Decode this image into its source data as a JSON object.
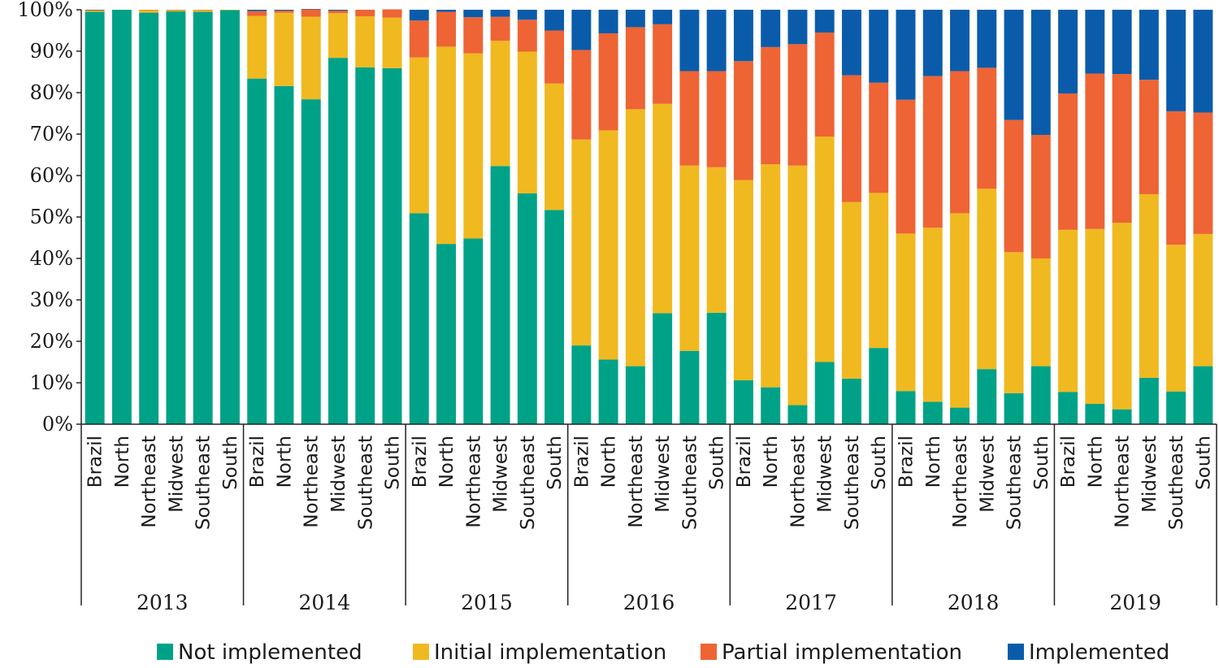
{
  "chart_data": {
    "type": "bar",
    "stacked": true,
    "normalized": true,
    "title": "",
    "xlabel": "",
    "ylabel": "",
    "ylim": [
      0,
      100
    ],
    "y_ticks": [
      "0%",
      "10%",
      "20%",
      "30%",
      "40%",
      "50%",
      "60%",
      "70%",
      "80%",
      "90%",
      "100%"
    ],
    "groups": [
      "2013",
      "2014",
      "2015",
      "2016",
      "2017",
      "2018",
      "2019"
    ],
    "regions": [
      "Brazil",
      "North",
      "Northeast",
      "Midwest",
      "Southeast",
      "South"
    ],
    "categories": [
      "2013 Brazil",
      "2013 North",
      "2013 Northeast",
      "2013 Midwest",
      "2013 Southeast",
      "2013 South",
      "2014 Brazil",
      "2014 North",
      "2014 Northeast",
      "2014 Midwest",
      "2014 Southeast",
      "2014 South",
      "2015 Brazil",
      "2015 North",
      "2015 Northeast",
      "2015 Midwest",
      "2015 Southeast",
      "2015 South",
      "2016 Brazil",
      "2016 North",
      "2016 Northeast",
      "2016 Midwest",
      "2016 Southeast",
      "2016 South",
      "2017 Brazil",
      "2017 North",
      "2017 Northeast",
      "2017 Midwest",
      "2017 Southeast",
      "2017 South",
      "2018 Brazil",
      "2018 North",
      "2018 Northeast",
      "2018 Midwest",
      "2018 Southeast",
      "2018 South",
      "2019 Brazil",
      "2019 North",
      "2019 Northeast",
      "2019 Midwest",
      "2019 Southeast",
      "2019 South"
    ],
    "series": [
      {
        "name": "Not implemented",
        "color": "#00a287",
        "values": [
          99.5,
          100,
          99.3,
          99.6,
          99.5,
          99.9,
          83.4,
          81.6,
          78.4,
          88.4,
          86.1,
          85.9,
          50.9,
          43.5,
          44.8,
          62.3,
          55.7,
          51.7,
          19.0,
          15.6,
          14.0,
          26.8,
          17.7,
          26.9,
          10.6,
          8.9,
          4.6,
          15.0,
          11.0,
          18.4,
          8.0,
          5.4,
          4.0,
          13.3,
          7.5,
          14.0,
          7.8,
          4.9,
          3.6,
          11.2,
          7.9,
          14.0
        ]
      },
      {
        "name": "Initial implementation",
        "color": "#f0b920",
        "values": [
          0.3,
          0,
          0.6,
          0.3,
          0.4,
          0.1,
          15.1,
          17.7,
          19.9,
          10.8,
          12.3,
          12.2,
          37.6,
          47.6,
          44.7,
          30.2,
          34.2,
          30.5,
          49.7,
          55.3,
          62.0,
          50.5,
          44.7,
          35.1,
          48.3,
          53.8,
          57.8,
          54.4,
          42.6,
          37.4,
          38.0,
          42.0,
          46.9,
          43.5,
          34.0,
          26.0,
          39.1,
          42.2,
          45.0,
          44.3,
          35.4,
          31.9
        ]
      },
      {
        "name": "Partial implementation",
        "color": "#ee6434",
        "values": [
          0.1,
          0,
          0.1,
          0.1,
          0.1,
          0,
          1.2,
          0.5,
          1.8,
          0.6,
          1.6,
          2.0,
          8.9,
          8.4,
          8.7,
          5.8,
          7.7,
          12.8,
          21.6,
          23.4,
          19.8,
          19.2,
          22.8,
          23.2,
          28.7,
          28.3,
          29.3,
          25.1,
          30.6,
          26.6,
          32.3,
          36.6,
          34.3,
          29.2,
          31.9,
          29.8,
          32.9,
          37.5,
          35.9,
          27.6,
          32.2,
          29.3
        ]
      },
      {
        "name": "Implemented",
        "color": "#0a5caa",
        "values": [
          0.1,
          0,
          0,
          0,
          0,
          0,
          0.3,
          0.2,
          0.1,
          0.2,
          0,
          0,
          2.6,
          0.5,
          1.8,
          1.7,
          2.4,
          5.0,
          9.7,
          5.7,
          4.2,
          3.5,
          14.8,
          14.8,
          12.4,
          9.0,
          8.3,
          5.5,
          15.8,
          17.6,
          21.7,
          16.0,
          14.8,
          14.0,
          26.6,
          30.2,
          20.2,
          15.4,
          15.5,
          16.9,
          24.5,
          24.8
        ]
      }
    ],
    "legend_position": "bottom",
    "grid": false
  }
}
